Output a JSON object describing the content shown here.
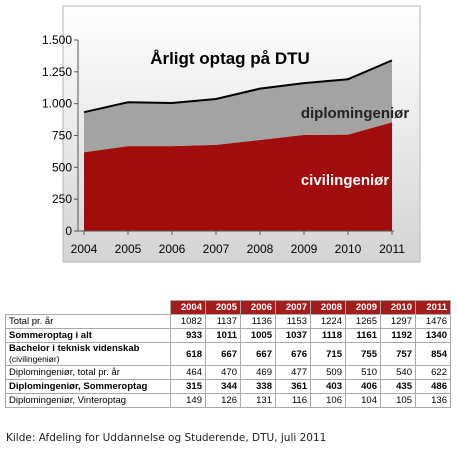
{
  "chart_data": {
    "type": "stacked_area",
    "title": "Årligt optag på DTU",
    "x": [
      2004,
      2005,
      2006,
      2007,
      2008,
      2009,
      2010,
      2011
    ],
    "xlim": [
      2004,
      2011
    ],
    "xticks": [
      2004,
      2005,
      2006,
      2007,
      2008,
      2009,
      2010,
      2011
    ],
    "ylim": [
      0,
      1500
    ],
    "yticks": [
      0,
      250,
      500,
      750,
      {
        "value": 1000,
        "label": "1.000"
      },
      {
        "value": 1250,
        "label": "1.250"
      },
      {
        "value": 1500,
        "label": "1.500"
      }
    ],
    "series": [
      {
        "name": "civilingeniør",
        "color": "#a10d0d",
        "values": [
          618,
          667,
          667,
          676,
          715,
          755,
          757,
          854
        ]
      },
      {
        "name": "diplomingeniør",
        "color": "#a3a3a3",
        "values": [
          315,
          344,
          338,
          361,
          403,
          406,
          435,
          486
        ]
      }
    ]
  },
  "table": {
    "years": [
      "2004",
      "2005",
      "2006",
      "2007",
      "2008",
      "2009",
      "2010",
      "2011"
    ],
    "rows": [
      {
        "label": "Total pr. år",
        "bold": false,
        "values": [
          1082,
          1137,
          1136,
          1153,
          1224,
          1265,
          1297,
          1476
        ]
      },
      {
        "label": "Sommeroptag i alt",
        "bold": true,
        "values": [
          933,
          1011,
          1005,
          1037,
          1118,
          1161,
          1192,
          1340
        ]
      },
      {
        "label": "Bachelor i teknisk videnskab",
        "note": "(civilingeniør)",
        "bold": true,
        "values": [
          618,
          667,
          667,
          676,
          715,
          755,
          757,
          854
        ]
      },
      {
        "label": "Diplomingeniør, total pr. år",
        "bold": false,
        "values": [
          464,
          470,
          469,
          477,
          509,
          510,
          540,
          622
        ]
      },
      {
        "label": "Diplomingeniør, Sommeroptag",
        "bold": true,
        "values": [
          315,
          344,
          338,
          361,
          403,
          406,
          435,
          486
        ]
      },
      {
        "label": "Diplomingeniør, Vinteroptag",
        "bold": false,
        "values": [
          149,
          126,
          131,
          116,
          106,
          104,
          105,
          136
        ]
      }
    ]
  },
  "source": "Kilde: Afdeling for Uddannelse og Studerende, DTU, juli 2011"
}
